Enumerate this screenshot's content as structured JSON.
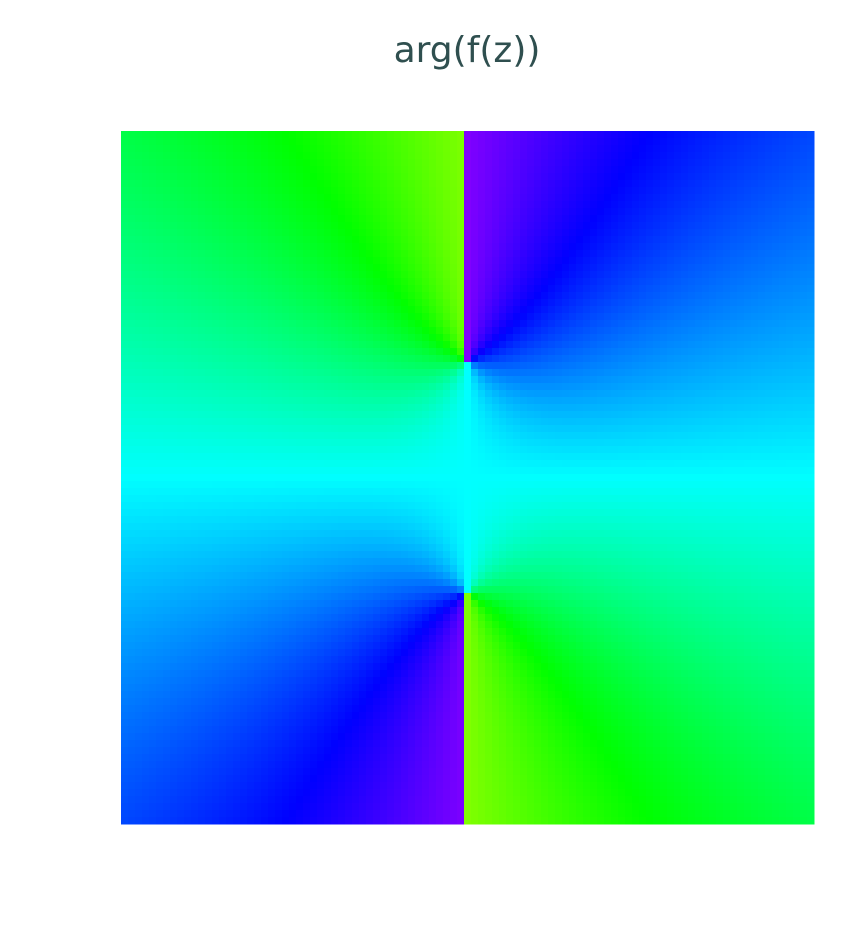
{
  "chart_data": {
    "type": "image",
    "title": "arg(f(z))"
  }
}
